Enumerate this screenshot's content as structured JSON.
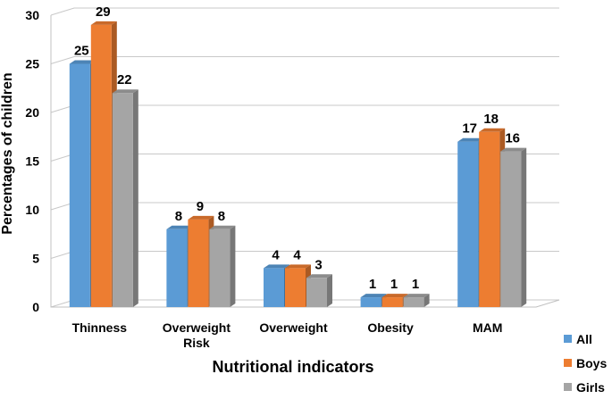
{
  "chart_data": {
    "type": "bar",
    "title": "",
    "xlabel": "Nutritional indicators",
    "ylabel": "Percentages of children",
    "ylim": [
      0,
      30
    ],
    "yticks": [
      0,
      5,
      10,
      15,
      20,
      25,
      30
    ],
    "grid": true,
    "legend_position": "bottom-right",
    "categories": [
      {
        "lines": [
          "Thinness"
        ]
      },
      {
        "lines": [
          "Overweight",
          "Risk"
        ]
      },
      {
        "lines": [
          "Overweight"
        ]
      },
      {
        "lines": [
          "Obesity"
        ]
      },
      {
        "lines": [
          "MAM"
        ]
      }
    ],
    "series": [
      {
        "name": "All",
        "color": "#5b9bd5",
        "values": [
          25,
          8,
          4,
          1,
          17
        ]
      },
      {
        "name": "Boys",
        "color": "#ed7d31",
        "values": [
          29,
          9,
          4,
          1,
          18
        ]
      },
      {
        "name": "Girls",
        "color": "#a5a5a5",
        "values": [
          22,
          8,
          3,
          1,
          16
        ]
      }
    ]
  }
}
